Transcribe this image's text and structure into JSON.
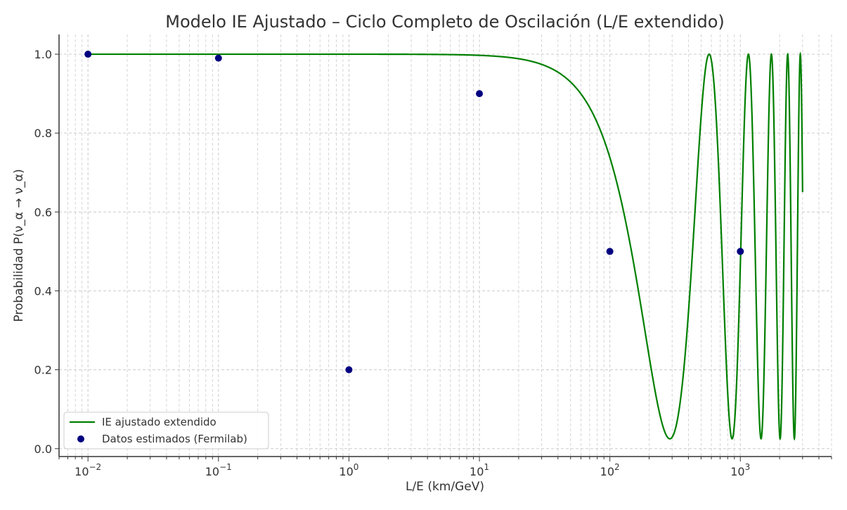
{
  "chart_data": {
    "type": "line",
    "title": "Modelo IE Ajustado – Ciclo Completo de Oscilación (L/E extendido)",
    "xlabel": "L/E (km/GeV)",
    "ylabel": "Probabilidad P(ν_α → ν_α)",
    "xscale": "log",
    "xlim": [
      0.006,
      5000
    ],
    "ylim": [
      -0.02,
      1.05
    ],
    "grid": true,
    "legend_position": "bottom-left",
    "x_ticks": [
      {
        "base": "10",
        "exp": "−2",
        "value": 0.01
      },
      {
        "base": "10",
        "exp": "−1",
        "value": 0.1
      },
      {
        "base": "10",
        "exp": "0",
        "value": 1
      },
      {
        "base": "10",
        "exp": "1",
        "value": 10
      },
      {
        "base": "10",
        "exp": "2",
        "value": 100
      },
      {
        "base": "10",
        "exp": "3",
        "value": 1000
      }
    ],
    "y_ticks": [
      "0.0",
      "0.2",
      "0.4",
      "0.6",
      "0.8",
      "1.0"
    ],
    "series": [
      {
        "name": "IE ajustado extendido",
        "kind": "line",
        "color": "#008000",
        "model": "1 - A*sin^2(k*x)",
        "A": 0.975,
        "k": 0.00545,
        "x_min": 0.01,
        "x_max": 3000
      },
      {
        "name": "Datos estimados (Fermilab)",
        "kind": "scatter",
        "color": "#000080",
        "x": [
          0.01,
          0.1,
          1,
          10,
          100,
          1000
        ],
        "y": [
          1.0,
          0.99,
          0.2,
          0.9,
          0.5,
          0.5
        ]
      }
    ]
  }
}
